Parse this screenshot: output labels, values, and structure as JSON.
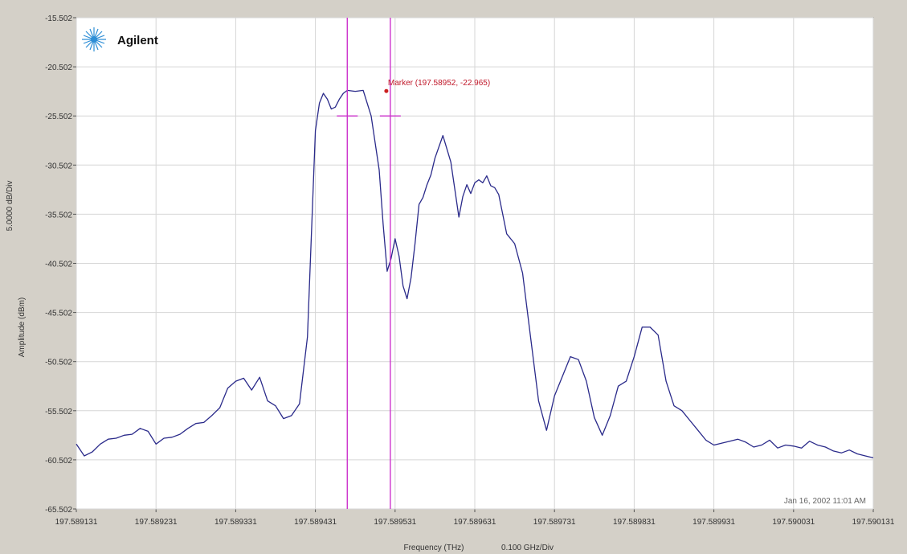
{
  "logo": {
    "brand": "Agilent"
  },
  "marker_label": "Marker (197.58952, -22.965)",
  "timestamp": "Jan 16, 2002 11:01 AM",
  "x_axis": {
    "title": "Frequency (THz)",
    "scale": "0.100 GHz/Div"
  },
  "y_axis": {
    "title": "Amplitude (dBm)",
    "scale": "5.0000 dB/Div"
  },
  "colors": {
    "trace": "#2a2a8a",
    "cursor": "#cc33cc",
    "marker": "#cc2222",
    "grid": "#d6d6d6",
    "plot_bg": "#ffffff",
    "frame_bg": "#d4d0c8"
  },
  "chart_data": {
    "type": "line",
    "title": "",
    "xlabel": "Frequency (THz)",
    "ylabel": "Amplitude (dBm)",
    "xlim": [
      197.589131,
      197.590131
    ],
    "ylim": [
      -65.502,
      -15.502
    ],
    "x_ticks": [
      "197.589131",
      "197.589231",
      "197.589331",
      "197.589431",
      "197.589531",
      "197.589631",
      "197.589731",
      "197.589831",
      "197.589931",
      "197.590031",
      "197.590131"
    ],
    "y_ticks": [
      "-15.502",
      "-20.502",
      "-25.502",
      "-30.502",
      "-35.502",
      "-40.502",
      "-45.502",
      "-50.502",
      "-55.502",
      "-60.502",
      "-65.502"
    ],
    "grid": true,
    "series": [
      {
        "x": [
          197.589131,
          197.589141,
          197.589151,
          197.589161,
          197.589171,
          197.589181,
          197.589191,
          197.589201,
          197.589211,
          197.589221,
          197.589231,
          197.589241,
          197.589251,
          197.589261,
          197.589271,
          197.589281,
          197.589291,
          197.589301,
          197.589311,
          197.589321,
          197.589331,
          197.589341,
          197.589351,
          197.589361,
          197.589371,
          197.589381,
          197.589391,
          197.589401,
          197.589411,
          197.589421,
          197.589431,
          197.589436,
          197.589441,
          197.589446,
          197.589451,
          197.589456,
          197.589461,
          197.589466,
          197.589471,
          197.589481,
          197.589491,
          197.589501,
          197.589511,
          197.589516,
          197.589521,
          197.589526,
          197.589531,
          197.589536,
          197.589541,
          197.589546,
          197.589551,
          197.589556,
          197.589561,
          197.589566,
          197.589571,
          197.589576,
          197.589581,
          197.589591,
          197.589601,
          197.589611,
          197.589616,
          197.589621,
          197.589626,
          197.589631,
          197.589636,
          197.589641,
          197.589646,
          197.589651,
          197.589656,
          197.589661,
          197.589671,
          197.589681,
          197.589691,
          197.589701,
          197.589711,
          197.589721,
          197.589731,
          197.589741,
          197.589751,
          197.589761,
          197.589771,
          197.589781,
          197.589791,
          197.589801,
          197.589811,
          197.589821,
          197.589831,
          197.589841,
          197.589851,
          197.589861,
          197.589871,
          197.589881,
          197.589891,
          197.589901,
          197.589911,
          197.589921,
          197.589931,
          197.589941,
          197.589951,
          197.589961,
          197.589971,
          197.589981,
          197.589991,
          197.590001,
          197.590011,
          197.590021,
          197.590031,
          197.590041,
          197.590051,
          197.590061,
          197.590071,
          197.590081,
          197.590091,
          197.590101,
          197.590111,
          197.590121,
          197.590131
        ],
        "values": [
          -58.9,
          -60.1,
          -59.7,
          -58.9,
          -58.4,
          -58.3,
          -58.0,
          -57.9,
          -57.3,
          -57.6,
          -58.9,
          -58.3,
          -58.2,
          -57.9,
          -57.3,
          -56.8,
          -56.7,
          -56.0,
          -55.2,
          -53.2,
          -52.5,
          -52.2,
          -53.4,
          -52.1,
          -54.5,
          -55.0,
          -56.3,
          -56.0,
          -54.8,
          -48.0,
          -27.0,
          -24.2,
          -23.2,
          -23.8,
          -24.8,
          -24.6,
          -23.8,
          -23.2,
          -22.9,
          -23.0,
          -22.9,
          -25.5,
          -31.0,
          -36.5,
          -41.3,
          -40.0,
          -38.0,
          -39.8,
          -42.8,
          -44.1,
          -42.0,
          -38.5,
          -34.5,
          -33.8,
          -32.5,
          -31.5,
          -29.8,
          -27.5,
          -30.2,
          -35.8,
          -33.7,
          -32.5,
          -33.4,
          -32.3,
          -32.0,
          -32.3,
          -31.6,
          -32.6,
          -32.8,
          -33.5,
          -37.5,
          -38.5,
          -41.5,
          -48.0,
          -54.5,
          -57.5,
          -54.0,
          -52.0,
          -50.0,
          -50.3,
          -52.5,
          -56.2,
          -58.0,
          -56.0,
          -53.0,
          -52.5,
          -50.0,
          -47.0,
          -47.0,
          -47.8,
          -52.5,
          -55.0,
          -55.5,
          -56.5,
          -57.5,
          -58.5,
          -59.0,
          -58.8,
          -58.6,
          -58.4,
          -58.7,
          -59.2,
          -59.0,
          -58.5,
          -59.3,
          -59.0,
          -59.1,
          -59.3,
          -58.6,
          -59.0,
          -59.2,
          -59.6,
          -59.8,
          -59.5,
          -59.9,
          -60.1,
          -60.3
        ]
      }
    ],
    "cursors": [
      197.589471,
      197.589525
    ],
    "marker": {
      "x": 197.58952,
      "y": -22.965
    }
  }
}
